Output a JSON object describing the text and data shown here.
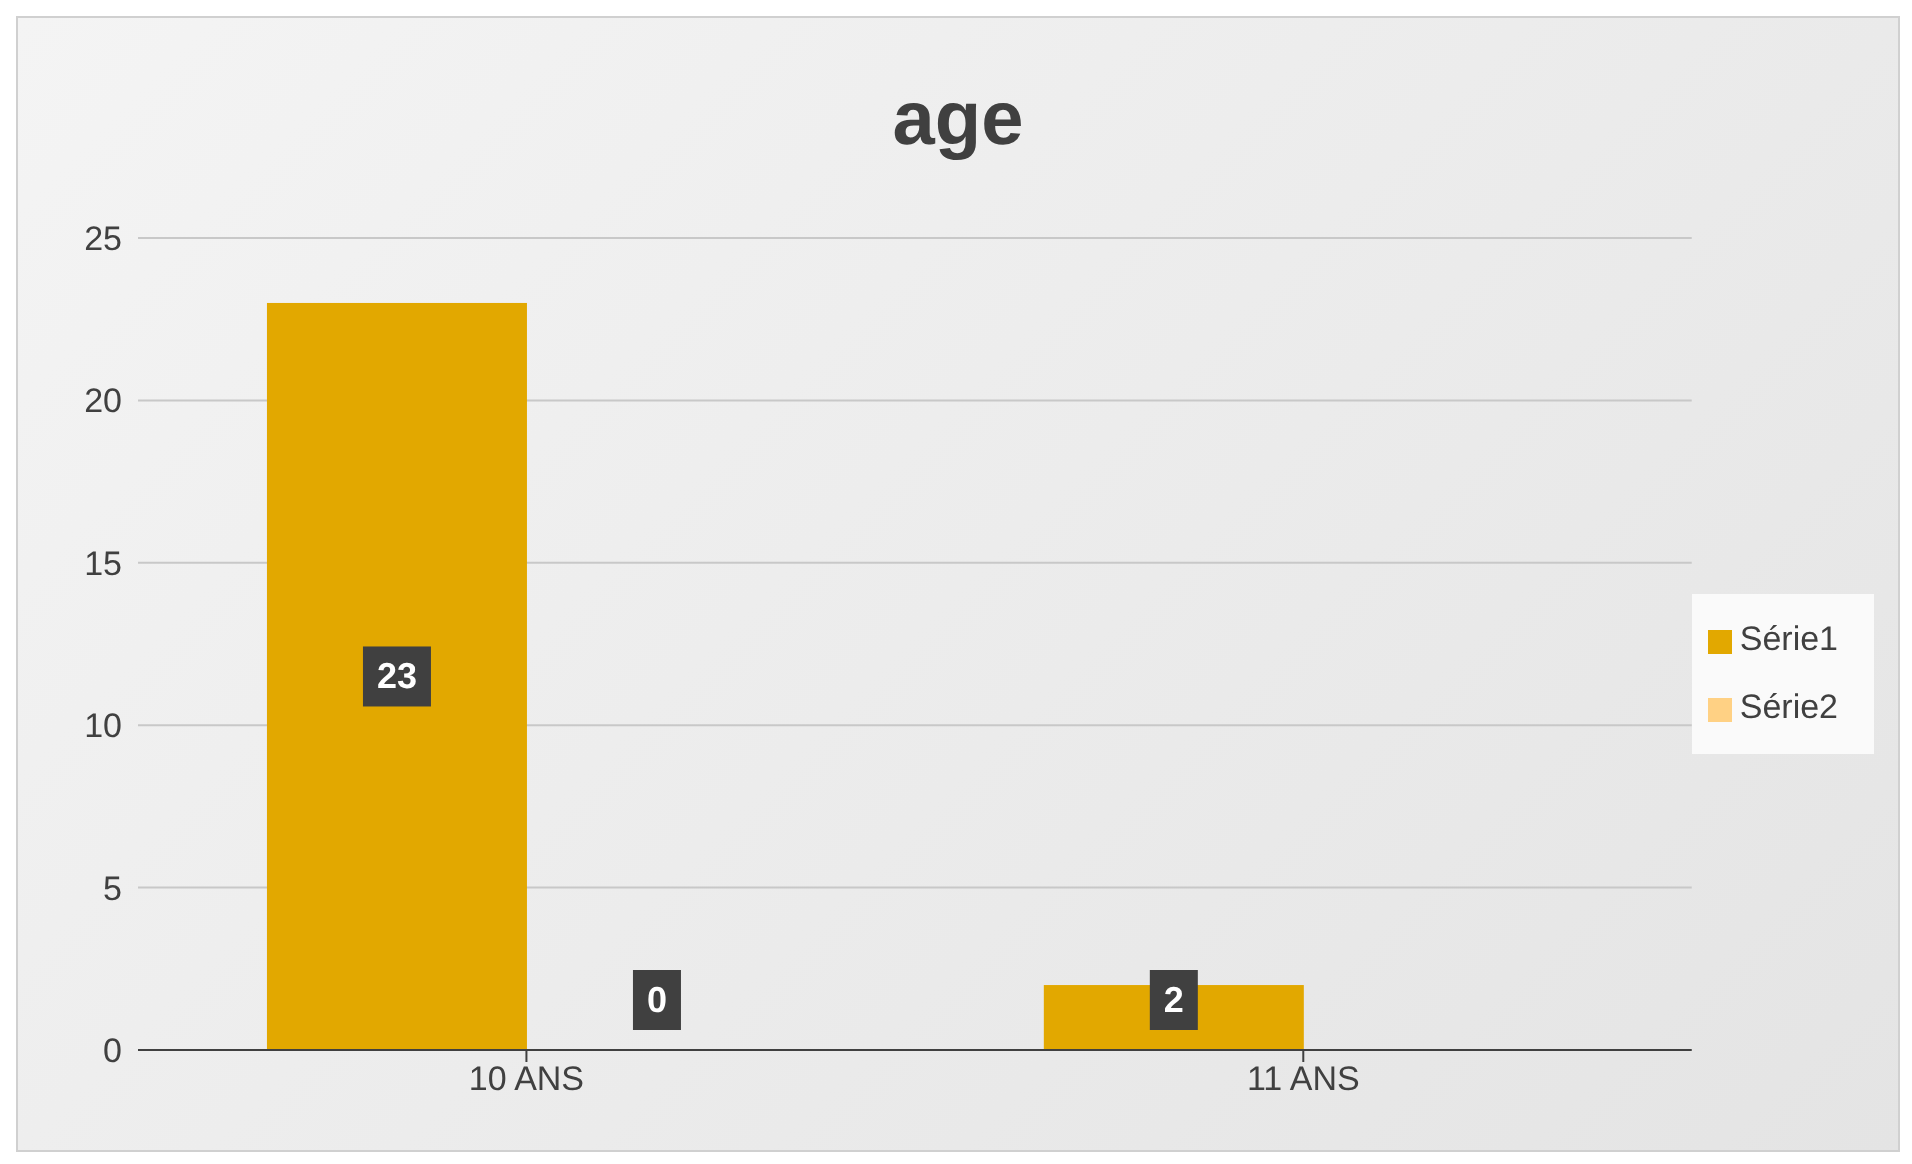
{
  "chart_data": {
    "type": "bar",
    "title": "age",
    "categories": [
      "10 ANS",
      "11 ANS"
    ],
    "series": [
      {
        "name": "Série1",
        "color": "#e2a800",
        "values": [
          23,
          2
        ]
      },
      {
        "name": "Série2",
        "color": "#ffd184",
        "values": [
          0,
          null
        ]
      }
    ],
    "ylim": [
      0,
      25
    ],
    "yticks": [
      0,
      5,
      10,
      15,
      20,
      25
    ],
    "grid": "y",
    "legend": "right",
    "data_labels": true
  }
}
